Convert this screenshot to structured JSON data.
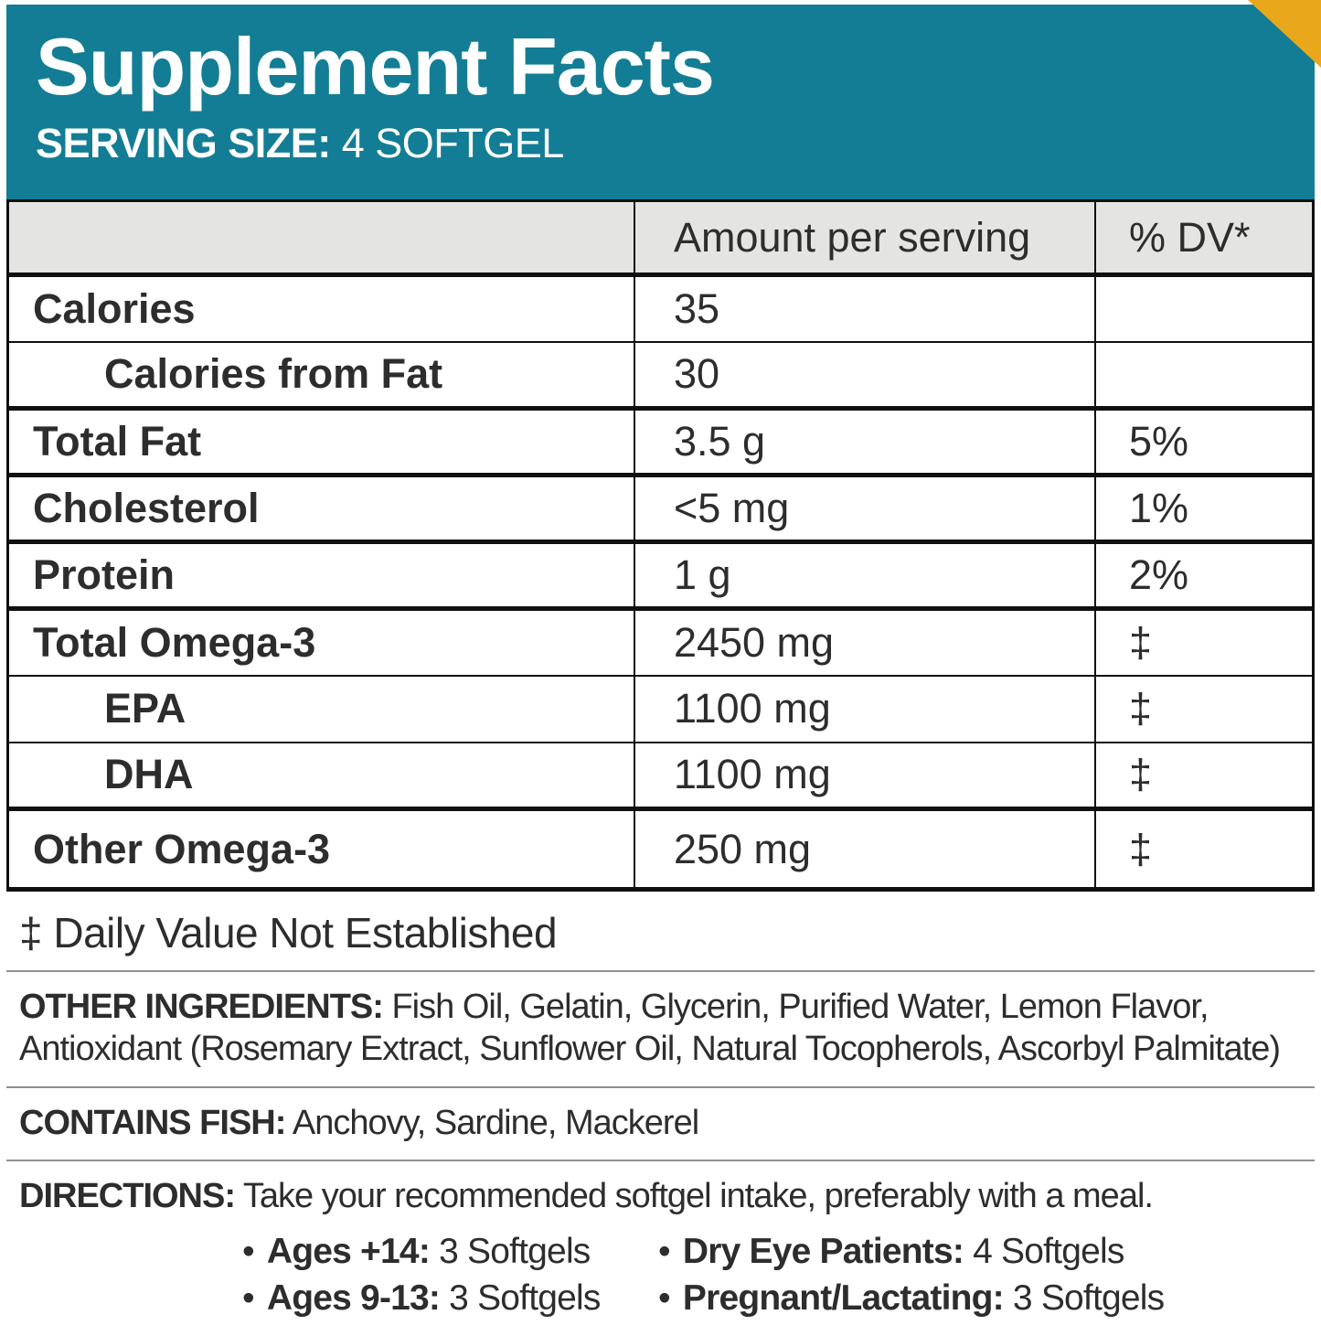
{
  "header": {
    "title": "Supplement Facts",
    "serving_size_label": "SERVING SIZE:",
    "serving_size_value": "4 SOFTGEL"
  },
  "colors": {
    "masthead_teal": "#137d95",
    "corner_yellow": "#e9a81c",
    "table_header_gray": "#e4e4e2",
    "text": "#2d2d2d"
  },
  "table": {
    "columns": {
      "nutrient": "",
      "amount": "Amount per serving",
      "dv": "% DV*"
    },
    "rows": [
      {
        "name": "Calories",
        "amount": "35",
        "dv": "",
        "indent": false,
        "group_end": false
      },
      {
        "name": "Calories from Fat",
        "amount": "30",
        "dv": "",
        "indent": true,
        "group_end": true
      },
      {
        "name": "Total Fat",
        "amount": "3.5 g",
        "dv": "5%",
        "indent": false,
        "group_end": true
      },
      {
        "name": "Cholesterol",
        "amount": "<5 mg",
        "dv": "1%",
        "indent": false,
        "group_end": true
      },
      {
        "name": "Protein",
        "amount": "1 g",
        "dv": "2%",
        "indent": false,
        "group_end": true
      },
      {
        "name": "Total Omega-3",
        "amount": "2450 mg",
        "dv": "‡",
        "indent": false,
        "group_end": false
      },
      {
        "name": "EPA",
        "amount": "1100 mg",
        "dv": "‡",
        "indent": true,
        "group_end": false
      },
      {
        "name": "DHA",
        "amount": "1100 mg",
        "dv": "‡",
        "indent": true,
        "group_end": true
      },
      {
        "name": "Other Omega-3",
        "amount": "250 mg",
        "dv": "‡",
        "indent": false,
        "group_end": true
      }
    ],
    "footnote": "‡ Daily Value Not Established"
  },
  "sections": {
    "other_ingredients": {
      "label": "OTHER INGREDIENTS:",
      "text": "Fish Oil, Gelatin, Glycerin, Purified Water, Lemon Flavor, Antioxidant (Rosemary Extract, Sunflower Oil, Natural Tocopherols, Ascorbyl Palmitate)"
    },
    "contains_fish": {
      "label": "CONTAINS FISH:",
      "text": "Anchovy, Sardine, Mackerel"
    },
    "directions": {
      "label": "DIRECTIONS:",
      "text": "Take your recommended softgel intake, preferably with a meal."
    }
  },
  "dosage": {
    "bullet": "•",
    "items": [
      {
        "label": "Ages +14:",
        "value": "3 Softgels"
      },
      {
        "label": "Dry Eye Patients:",
        "value": "4 Softgels"
      },
      {
        "label": "Ages 9-13:",
        "value": "3 Softgels"
      },
      {
        "label": "Pregnant/Lactating:",
        "value": "3 Softgels"
      }
    ]
  }
}
